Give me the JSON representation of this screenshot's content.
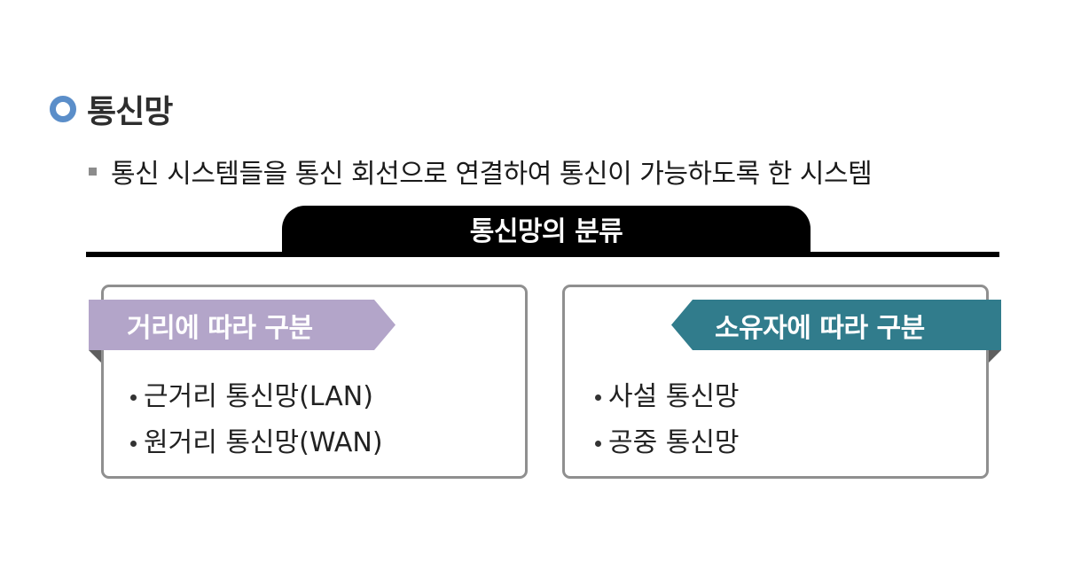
{
  "title": "통신망",
  "description": "통신 시스템들을 통신 회선으로 연결하여 통신이 가능하도록 한 시스템",
  "classification_header": "통신망의 분류",
  "left_panel": {
    "label": "거리에 따라 구분",
    "items": [
      "근거리 통신망(LAN)",
      "원거리 통신망(WAN)"
    ]
  },
  "right_panel": {
    "label": "소유자에 따라 구분",
    "items": [
      "사설 통신망",
      "공중 통신망"
    ]
  },
  "colors": {
    "title_bullet": "#5b8ec9",
    "left_ribbon": "#b3a5c9",
    "right_ribbon": "#317c8c",
    "header_bar": "#000000",
    "panel_border": "#8f8f8f"
  }
}
